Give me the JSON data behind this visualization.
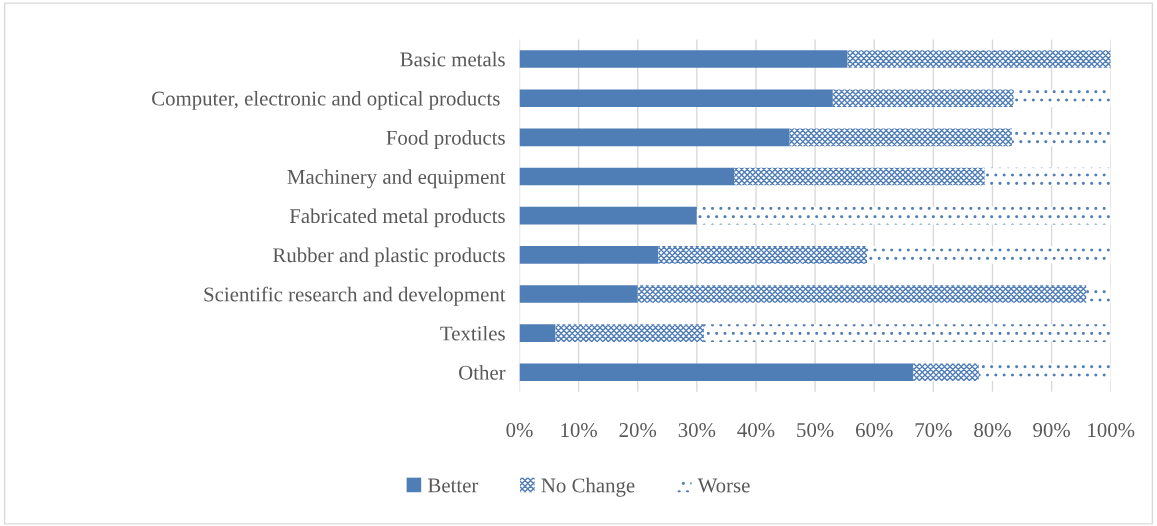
{
  "chart_data": {
    "type": "bar",
    "orientation": "horizontal",
    "stacked": true,
    "categories": [
      "Basic metals",
      "Computer, electronic and optical products ",
      "Food products",
      "Machinery and equipment",
      "Fabricated metal products",
      "Rubber and plastic products",
      "Scientific research and development",
      "Textiles",
      "Other"
    ],
    "series": [
      {
        "name": "Better",
        "color": "#4f7db5",
        "values": [
          55.5,
          53.0,
          45.7,
          36.3,
          30.0,
          23.5,
          20.0,
          6.1,
          66.6
        ]
      },
      {
        "name": "No Change",
        "color": "#4f7db5",
        "values": [
          44.5,
          30.6,
          37.6,
          42.4,
          0,
          35.3,
          75.9,
          25.1,
          11.1
        ]
      },
      {
        "name": "Worse",
        "color": "#4f7db5",
        "values": [
          0,
          16.4,
          16.7,
          21.3,
          70.0,
          41.2,
          4.1,
          68.8,
          22.3
        ]
      }
    ],
    "xlim": [
      0,
      100
    ],
    "xticks": [
      {
        "value": 0,
        "label": "0%"
      },
      {
        "value": 10,
        "label": "10%"
      },
      {
        "value": 20,
        "label": "20%"
      },
      {
        "value": 30,
        "label": "30%"
      },
      {
        "value": 40,
        "label": "40%"
      },
      {
        "value": 50,
        "label": "50%"
      },
      {
        "value": 60,
        "label": "60%"
      },
      {
        "value": 70,
        "label": "70%"
      },
      {
        "value": 80,
        "label": "80%"
      },
      {
        "value": 90,
        "label": "90%"
      },
      {
        "value": 100,
        "label": "100%"
      }
    ],
    "grid": "x",
    "legend": "bottom"
  }
}
